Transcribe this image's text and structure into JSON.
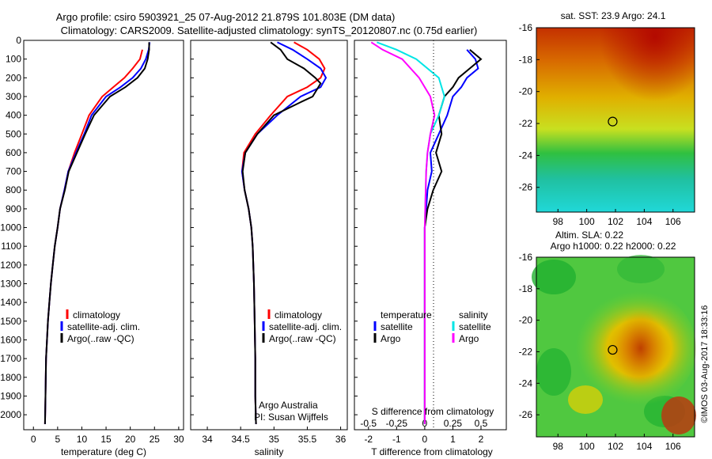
{
  "header": {
    "line1": "Argo profile: csiro 5903921_25 07-Aug-2012 21.879S 101.803E (DM data)",
    "line2": "Climatology: CARS2009. Satellite-adjusted climatology: synTS_20120807.nc (0.75d earlier)"
  },
  "credit": {
    "line1": "Argo Australia",
    "line2": "PI: Susan Wijffels"
  },
  "side_stamp": "©IMOS 03-Aug-2017 18:33:16",
  "colors": {
    "climatology": "#ff0000",
    "satellite": "#0000ff",
    "argo": "#000000",
    "salinity_satellite": "#00e5e5",
    "salinity_argo": "#ff00ff"
  },
  "legend_tempsal": [
    {
      "label": "climatology",
      "color": "#ff0000"
    },
    {
      "label": "satellite-adj. clim.",
      "color": "#0000ff"
    },
    {
      "label": "Argo(..raw -QC)",
      "color": "#000000"
    }
  ],
  "legend_diff": {
    "temp_title": "temperature",
    "sal_title": "salinity",
    "temp": [
      {
        "label": "satellite",
        "color": "#0000ff"
      },
      {
        "label": "Argo",
        "color": "#000000"
      }
    ],
    "sal": [
      {
        "label": "satellite",
        "color": "#00e5e5"
      },
      {
        "label": "Argo",
        "color": "#ff00ff"
      }
    ]
  },
  "maps": {
    "sst": {
      "title": "sat. SST: 23.9 Argo: 24.1"
    },
    "sla": {
      "title1": "Altim. SLA: 0.22",
      "title2": "Argo h1000: 0.22 h2000: 0.22"
    },
    "xticks": [
      "98",
      "100",
      "102",
      "104",
      "106"
    ],
    "yticks": [
      "-16",
      "-18",
      "-20",
      "-22",
      "-24",
      "-26"
    ],
    "float_lon": 101.803,
    "float_lat": -21.879
  },
  "chart_data": [
    {
      "type": "line",
      "xlabel": "temperature (deg C)",
      "ylabel": "",
      "xlim": [
        -2,
        31
      ],
      "ylim": [
        2080,
        0
      ],
      "xticks": [
        "0",
        "5",
        "10",
        "15",
        "20",
        "25",
        "30"
      ],
      "yticks": [
        "0",
        "100",
        "200",
        "300",
        "400",
        "500",
        "600",
        "700",
        "800",
        "900",
        "1000",
        "1100",
        "1200",
        "1300",
        "1400",
        "1500",
        "1600",
        "1700",
        "1800",
        "1900",
        "2000"
      ],
      "series": [
        {
          "name": "climatology",
          "color": "#ff0000",
          "x": [
            22.5,
            22.0,
            20.5,
            18.8,
            16.5,
            14.2,
            11.5,
            10.0,
            8.5,
            7.2,
            6.4,
            5.5,
            5.0,
            4.4,
            4.0,
            3.6,
            3.3,
            3.0,
            2.8,
            2.6,
            2.5,
            2.4
          ],
          "y": [
            50,
            100,
            150,
            200,
            250,
            300,
            400,
            500,
            600,
            700,
            800,
            900,
            1000,
            1100,
            1200,
            1300,
            1400,
            1500,
            1600,
            1700,
            1900,
            2050
          ]
        },
        {
          "name": "satellite-adj. clim.",
          "color": "#0000ff",
          "x": [
            24.0,
            23.8,
            23.2,
            22.2,
            20.5,
            18.0,
            15.0,
            12.0,
            10.5,
            8.8,
            7.2,
            6.4,
            5.5,
            5.0,
            4.4,
            4.0,
            3.6,
            3.3,
            3.0,
            2.8,
            2.6,
            2.5,
            2.4
          ],
          "y": [
            10,
            50,
            100,
            150,
            200,
            250,
            300,
            400,
            500,
            600,
            700,
            800,
            900,
            1000,
            1100,
            1200,
            1300,
            1400,
            1500,
            1600,
            1700,
            1900,
            2050
          ]
        },
        {
          "name": "Argo(..raw -QC)",
          "color": "#000000",
          "x": [
            23.9,
            23.9,
            23.6,
            23.0,
            21.5,
            19.0,
            15.8,
            12.5,
            10.7,
            9.0,
            7.3,
            6.5,
            5.5,
            5.0,
            4.4,
            4.0,
            3.6,
            3.3,
            3.0,
            2.8,
            2.6,
            2.5,
            2.4
          ],
          "y": [
            10,
            50,
            100,
            150,
            200,
            250,
            300,
            400,
            500,
            600,
            700,
            800,
            900,
            1000,
            1100,
            1200,
            1300,
            1400,
            1500,
            1600,
            1700,
            1900,
            2050
          ]
        }
      ]
    },
    {
      "type": "line",
      "xlabel": "salinity",
      "ylabel": "",
      "xlim": [
        33.75,
        36.1
      ],
      "ylim": [
        2080,
        0
      ],
      "xticks": [
        "34",
        "34.5",
        "35",
        "35.5",
        "36"
      ],
      "series": [
        {
          "name": "climatology",
          "color": "#ff0000",
          "x": [
            35.3,
            35.5,
            35.68,
            35.76,
            35.7,
            35.5,
            35.2,
            34.95,
            34.72,
            34.55,
            34.52,
            34.56,
            34.62,
            34.66,
            34.68,
            34.69,
            34.7,
            34.71,
            34.72,
            34.72,
            34.73
          ],
          "y": [
            10,
            50,
            100,
            150,
            200,
            250,
            300,
            400,
            500,
            600,
            700,
            800,
            900,
            1000,
            1100,
            1200,
            1300,
            1500,
            1700,
            1900,
            2050
          ]
        },
        {
          "name": "satellite-adj. clim.",
          "color": "#0000ff",
          "x": [
            35.05,
            35.28,
            35.5,
            35.7,
            35.78,
            35.7,
            35.4,
            35.05,
            34.75,
            34.57,
            34.52,
            34.56,
            34.62,
            34.66,
            34.68,
            34.69,
            34.7,
            34.71,
            34.72,
            34.72,
            34.73
          ],
          "y": [
            10,
            50,
            100,
            150,
            200,
            250,
            300,
            400,
            500,
            600,
            700,
            800,
            900,
            1000,
            1100,
            1200,
            1300,
            1500,
            1700,
            1900,
            2050
          ]
        },
        {
          "name": "Argo(..raw -QC)",
          "color": "#000000",
          "x": [
            34.95,
            35.1,
            35.2,
            35.45,
            35.62,
            35.7,
            35.58,
            35.4,
            35.0,
            34.75,
            34.57,
            34.53,
            34.56,
            34.62,
            34.66,
            34.68,
            34.69,
            34.7,
            34.71,
            34.72,
            34.72,
            34.73
          ],
          "y": [
            10,
            50,
            100,
            150,
            200,
            230,
            300,
            330,
            400,
            500,
            600,
            700,
            800,
            900,
            1000,
            1100,
            1200,
            1300,
            1500,
            1700,
            1900,
            2050
          ]
        }
      ]
    },
    {
      "type": "line",
      "xlabel": "T difference from climatology",
      "xlabel_top": "S difference from climatology",
      "ylabel": "",
      "xlim": [
        -2.5,
        2.9
      ],
      "ylim": [
        2080,
        0
      ],
      "xticks": [
        "-2",
        "-1",
        "0",
        "1",
        "2"
      ],
      "xticks_top": [
        "-0.5",
        "-0.25",
        "0",
        "0.25",
        "0.5"
      ],
      "series": [
        {
          "name": "temperature satellite",
          "color": "#0000ff",
          "x": [
            1.5,
            1.8,
            1.9,
            1.5,
            1.3,
            1.0,
            0.8,
            0.5,
            0.2,
            0.25,
            0.1,
            0.05,
            0.0,
            0.0,
            0.0
          ],
          "y": [
            50,
            100,
            150,
            200,
            250,
            300,
            400,
            500,
            600,
            700,
            800,
            900,
            1000,
            1500,
            2050
          ]
        },
        {
          "name": "temperature Argo",
          "color": "#000000",
          "x": [
            1.6,
            2.0,
            1.6,
            1.2,
            1.0,
            0.7,
            0.5,
            0.6,
            0.4,
            0.6,
            0.3,
            0.1,
            0.0,
            0.0,
            0.0
          ],
          "y": [
            50,
            100,
            150,
            200,
            250,
            300,
            400,
            500,
            600,
            700,
            800,
            900,
            1000,
            1500,
            2050
          ]
        },
        {
          "name": "salinity satellite",
          "color": "#00e5e5",
          "x": [
            -1.7,
            -1.0,
            -0.3,
            0.5,
            0.7,
            0.5,
            0.2,
            0.1,
            0.05,
            0.0,
            0.0,
            0.0
          ],
          "y": [
            10,
            50,
            100,
            200,
            300,
            400,
            500,
            600,
            700,
            1000,
            1500,
            2050
          ]
        },
        {
          "name": "salinity Argo",
          "color": "#ff00ff",
          "x": [
            -1.9,
            -1.5,
            -0.8,
            -0.2,
            0.2,
            0.35,
            0.2,
            0.1,
            0.05,
            0.0,
            0.0,
            0.0
          ],
          "y": [
            10,
            50,
            100,
            200,
            300,
            400,
            500,
            600,
            700,
            1000,
            1500,
            2050
          ]
        }
      ]
    }
  ]
}
